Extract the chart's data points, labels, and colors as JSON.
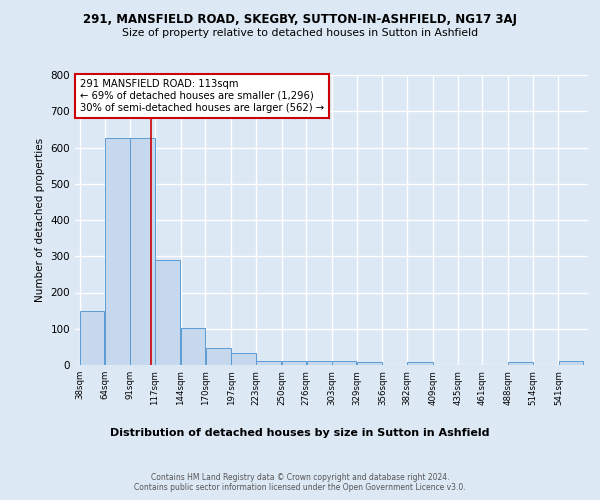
{
  "title1": "291, MANSFIELD ROAD, SKEGBY, SUTTON-IN-ASHFIELD, NG17 3AJ",
  "title2": "Size of property relative to detached houses in Sutton in Ashfield",
  "xlabel": "Distribution of detached houses by size in Sutton in Ashfield",
  "ylabel": "Number of detached properties",
  "footer1": "Contains HM Land Registry data © Crown copyright and database right 2024.",
  "footer2": "Contains public sector information licensed under the Open Government Licence v3.0.",
  "bar_edges": [
    38,
    64,
    91,
    117,
    144,
    170,
    197,
    223,
    250,
    276,
    303,
    329,
    356,
    382,
    409,
    435,
    461,
    488,
    514,
    541,
    567
  ],
  "bar_heights": [
    150,
    625,
    625,
    290,
    103,
    47,
    32,
    12,
    10,
    10,
    10,
    8,
    0,
    7,
    0,
    0,
    0,
    7,
    0,
    10
  ],
  "bar_color": "#c5d8ed",
  "bar_edge_color": "#5b9bd5",
  "vline_x": 113,
  "vline_color": "#cc0000",
  "annotation_text": "291 MANSFIELD ROAD: 113sqm\n← 69% of detached houses are smaller (1,296)\n30% of semi-detached houses are larger (562) →",
  "annotation_box_color": "white",
  "annotation_box_edgecolor": "#cc0000",
  "ylim": [
    0,
    800
  ],
  "yticks": [
    0,
    100,
    200,
    300,
    400,
    500,
    600,
    700,
    800
  ],
  "bg_color": "#dde8f5",
  "grid_color": "white",
  "property_sqm": 113
}
